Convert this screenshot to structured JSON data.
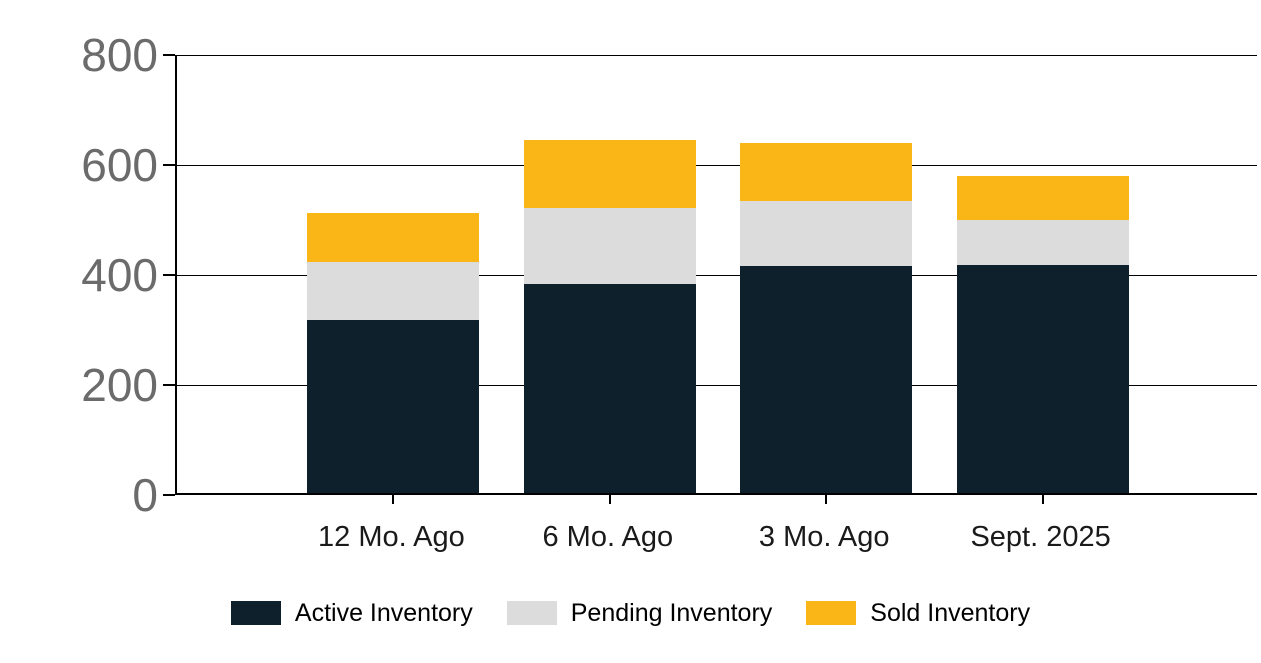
{
  "chart_data": {
    "type": "bar",
    "stacked": true,
    "categories": [
      "12 Mo. Ago",
      "6 Mo. Ago",
      "3 Mo. Ago",
      "Sept. 2025"
    ],
    "series": [
      {
        "name": "Active Inventory",
        "color": "#0d202c",
        "values": [
          316,
          382,
          415,
          416
        ]
      },
      {
        "name": "Pending Inventory",
        "color": "#dcdcdc",
        "values": [
          106,
          138,
          118,
          82
        ]
      },
      {
        "name": "Sold Inventory",
        "color": "#fab516",
        "values": [
          90,
          125,
          106,
          81
        ]
      }
    ],
    "stack_totals": [
      512,
      645,
      639,
      579
    ],
    "ylim": [
      0,
      800
    ],
    "yticks": [
      0,
      200,
      400,
      600,
      800
    ],
    "grid": true,
    "legend_position": "bottom",
    "colors": {
      "axis_line": "#000000",
      "gridline": "#000000",
      "y_tick_label": "#6b6b6b",
      "x_tick_label": "#1a1a1a",
      "legend_text": "#000000",
      "background": "#ffffff"
    }
  }
}
